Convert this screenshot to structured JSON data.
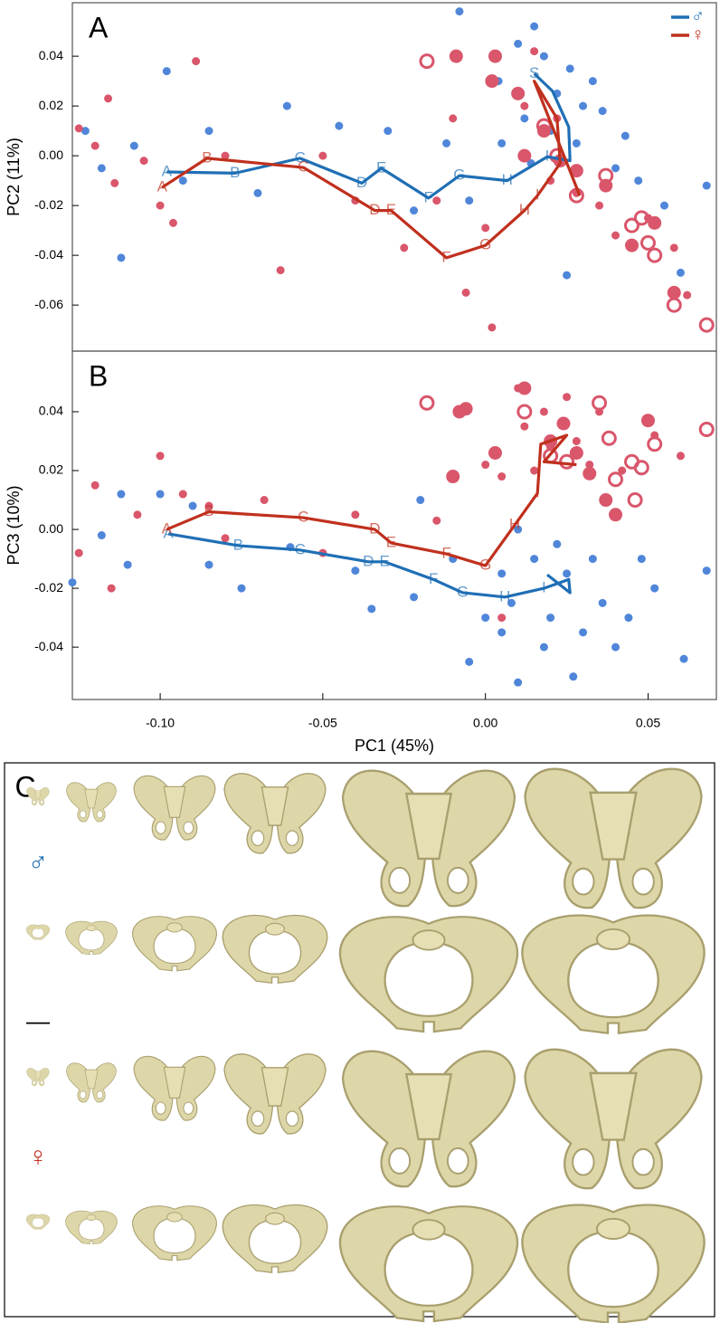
{
  "chart_data": [
    {
      "type": "scatter",
      "panel": "A",
      "ylabel": "PC2 (11%)",
      "xlim": [
        -0.127,
        0.071
      ],
      "ylim": [
        -0.0785,
        0.0615
      ],
      "yticks": [
        0.04,
        0.02,
        {
          "value": 0,
          "label": "0.00"
        },
        -0.02,
        -0.04,
        -0.06
      ],
      "legend": "upper right",
      "series": [
        {
          "color": "#4f86d9",
          "marker": "dot",
          "size": 4.5,
          "x": [
            -0.123,
            -0.118,
            -0.112,
            -0.108,
            -0.098,
            -0.093,
            -0.085,
            -0.07,
            -0.061,
            -0.045,
            -0.03,
            -0.022,
            -0.012,
            -0.008,
            -0.005,
            0.004,
            0.01,
            0.012,
            0.015,
            0.018,
            0.02,
            0.022,
            0.026,
            0.028,
            0.03,
            0.033,
            0.036,
            0.04,
            0.043,
            0.047,
            0.055,
            0.06,
            0.068,
            0.025,
            0.005,
            0.014
          ],
          "values": [
            0.01,
            -0.005,
            -0.041,
            0.004,
            0.034,
            -0.01,
            0.01,
            -0.015,
            0.02,
            0.012,
            0.01,
            -0.022,
            0.005,
            0.058,
            -0.018,
            0.03,
            0.045,
            0.015,
            0.052,
            0.04,
            0.01,
            0.025,
            0.035,
            0.005,
            0.02,
            0.03,
            0.018,
            -0.005,
            0.008,
            -0.01,
            -0.02,
            -0.047,
            -0.012,
            -0.048,
            0.005,
            -0.003
          ]
        },
        {
          "color": "#d9566b",
          "marker": "dot",
          "size": 4.5,
          "x": [
            -0.125,
            -0.12,
            -0.116,
            -0.114,
            -0.105,
            -0.1,
            -0.096,
            -0.089,
            -0.08,
            -0.063,
            -0.05,
            -0.04,
            -0.025,
            -0.015,
            -0.01,
            -0.006,
            0,
            0.002,
            0.012,
            0.015,
            0.02,
            0.022,
            0.028,
            0.035,
            0.04,
            0.045,
            0.05,
            0.058,
            0.062
          ],
          "values": [
            0.011,
            0.004,
            0.023,
            -0.011,
            -0.002,
            -0.02,
            -0.027,
            0.038,
            0,
            -0.046,
            0,
            -0.018,
            -0.037,
            -0.018,
            0.015,
            -0.055,
            -0.029,
            -0.069,
            0.02,
            0.042,
            -0.01,
            0.015,
            -0.015,
            -0.02,
            -0.032,
            -0.035,
            -0.025,
            -0.037,
            -0.056
          ]
        },
        {
          "color": "#d9566b",
          "marker": "dot",
          "size": 7.5,
          "x": [
            -0.009,
            0.002,
            0.003,
            0.01,
            0.012,
            0.018,
            0.023,
            0.028,
            0.037,
            0.045,
            0.052,
            0.058
          ],
          "values": [
            0.04,
            0.03,
            0.04,
            0.025,
            0,
            0.01,
            -0.002,
            -0.006,
            -0.012,
            -0.036,
            -0.027,
            -0.055
          ]
        },
        {
          "color": "#d9566b",
          "marker": "open",
          "size": 7,
          "x": [
            -0.018,
            0.018,
            0.022,
            0.028,
            0.037,
            0.045,
            0.048,
            0.05,
            0.052,
            0.058,
            0.068
          ],
          "values": [
            0.038,
            0.012,
            0,
            -0.016,
            -0.008,
            -0.028,
            -0.025,
            -0.035,
            -0.04,
            -0.06,
            -0.068
          ]
        },
        {
          "name": "♂",
          "color": "#1f6fb5",
          "marker": "line",
          "x": [
            -0.098,
            -0.077,
            -0.057,
            -0.038,
            -0.032,
            -0.0175,
            -0.008,
            0.0067,
            0.019,
            0.026,
            0.0256,
            0.0206,
            0.015
          ],
          "values": [
            -0.0065,
            -0.007,
            -0.001,
            -0.011,
            -0.005,
            -0.017,
            -0.008,
            -0.01,
            -0.0004,
            -0.002,
            0.0116,
            0.026,
            0.033
          ],
          "labels": [
            "A",
            "B",
            "C",
            "D",
            "E",
            "F",
            "G",
            "H",
            "I",
            null,
            null,
            null,
            "S"
          ]
        },
        {
          "name": "♀",
          "color": "#c0301e",
          "marker": "line",
          "x": [
            -0.0994,
            -0.0856,
            -0.056,
            -0.034,
            -0.029,
            -0.012,
            0,
            0.012,
            0.016,
            0.023,
            0.022,
            0.015,
            0.029
          ],
          "values": [
            -0.0127,
            -0.001,
            -0.0047,
            -0.022,
            -0.022,
            -0.041,
            -0.036,
            -0.022,
            -0.016,
            -0.003,
            0.015,
            0.03,
            -0.016
          ],
          "labels": [
            "A",
            "B",
            "C",
            "D",
            "E",
            "F",
            "G",
            "H",
            "I",
            null,
            null,
            null,
            null
          ]
        }
      ]
    },
    {
      "type": "scatter",
      "panel": "B",
      "ylabel": "PC3 (10%)",
      "xlabel": "PC1 (45%)",
      "xlim": [
        -0.127,
        0.071
      ],
      "ylim": [
        -0.0578,
        0.0606
      ],
      "xticks": [
        {
          "value": -0.1,
          "label": "-0.10"
        },
        -0.05,
        {
          "value": 0,
          "label": "0.00"
        },
        0.05
      ],
      "yticks": [
        0.04,
        0.02,
        {
          "value": 0,
          "label": "0.00"
        },
        -0.02,
        -0.04
      ],
      "series": [
        {
          "color": "#4f86d9",
          "marker": "dot",
          "size": 4.5,
          "x": [
            -0.127,
            -0.118,
            -0.112,
            -0.11,
            -0.1,
            -0.09,
            -0.085,
            -0.075,
            -0.06,
            -0.04,
            -0.035,
            -0.022,
            -0.02,
            -0.01,
            -0.005,
            0,
            0.005,
            0.008,
            0.01,
            0.015,
            0.018,
            0.02,
            0.025,
            0.027,
            0.03,
            0.033,
            0.036,
            0.04,
            0.044,
            0.048,
            0.052,
            0.061,
            0.068,
            0.01,
            0.005,
            0.022
          ],
          "values": [
            -0.018,
            -0.002,
            0.012,
            -0.012,
            0.012,
            0.008,
            -0.012,
            -0.02,
            -0.006,
            -0.014,
            -0.027,
            -0.023,
            0.01,
            -0.01,
            -0.045,
            -0.03,
            -0.035,
            -0.025,
            -0.052,
            -0.01,
            -0.04,
            -0.03,
            -0.015,
            -0.05,
            -0.035,
            -0.01,
            -0.025,
            -0.04,
            -0.03,
            -0.01,
            -0.02,
            -0.044,
            -0.014,
            0,
            -0.015,
            -0.005
          ]
        },
        {
          "color": "#d9566b",
          "marker": "dot",
          "size": 4.5,
          "x": [
            -0.125,
            -0.12,
            -0.115,
            -0.107,
            -0.1,
            -0.093,
            -0.085,
            -0.08,
            -0.068,
            -0.05,
            -0.04,
            -0.015,
            0,
            0.005,
            0.01,
            0.012,
            0.015,
            0.018,
            0.02,
            0.025,
            0.028,
            0.032,
            0.035,
            0.042,
            0.052,
            0.06,
            0.005
          ],
          "values": [
            -0.008,
            0.015,
            -0.02,
            0.005,
            0.025,
            0.012,
            0.008,
            -0.003,
            0.01,
            -0.008,
            0.005,
            0.003,
            0.022,
            0.018,
            0.048,
            0.035,
            0.02,
            0.04,
            0.028,
            0.045,
            0.03,
            0.022,
            0.04,
            0.02,
            0.032,
            0.025,
            -0.03
          ]
        },
        {
          "color": "#d9566b",
          "marker": "dot",
          "size": 7.5,
          "x": [
            -0.008,
            -0.006,
            0.003,
            -0.01,
            0.012,
            0.02,
            0.024,
            0.028,
            0.032,
            0.037,
            0.04,
            0.05
          ],
          "values": [
            0.04,
            0.041,
            0.026,
            0.018,
            0.048,
            0.03,
            0.036,
            0.026,
            0.019,
            0.01,
            0.005,
            0.037
          ]
        },
        {
          "color": "#d9566b",
          "marker": "open",
          "size": 7,
          "x": [
            -0.018,
            0.012,
            0.02,
            0.025,
            0.035,
            0.038,
            0.04,
            0.045,
            0.048,
            0.046,
            0.052,
            0.068
          ],
          "values": [
            0.043,
            0.04,
            0.025,
            0.023,
            0.043,
            0.031,
            0.017,
            0.023,
            0.021,
            0.01,
            0.029,
            0.034
          ]
        },
        {
          "name": "♂",
          "color": "#1f6fb5",
          "marker": "line",
          "x": [
            -0.0975,
            -0.076,
            -0.057,
            -0.036,
            -0.031,
            -0.016,
            -0.007,
            0.006,
            0.018,
            0.0256,
            0.026,
            0.019
          ],
          "values": [
            -0.0015,
            -0.0055,
            -0.007,
            -0.011,
            -0.011,
            -0.017,
            -0.0215,
            -0.023,
            -0.02,
            -0.017,
            -0.0215,
            -0.0154
          ],
          "labels": [
            "A",
            "B",
            "C",
            "D",
            "E",
            "F",
            "G",
            "H",
            "I",
            null,
            null,
            null
          ]
        },
        {
          "name": "♀",
          "color": "#c0301e",
          "marker": "line",
          "x": [
            -0.098,
            -0.085,
            -0.056,
            -0.034,
            -0.029,
            -0.012,
            0,
            0.009,
            0.016,
            0.017,
            0.025,
            0.018,
            0.028
          ],
          "values": [
            0,
            0.006,
            0.004,
            0,
            -0.0046,
            -0.0083,
            -0.0123,
            0.0015,
            0.0123,
            0.029,
            0.032,
            0.023,
            0.022
          ],
          "labels": [
            "A",
            "B",
            "C",
            "D",
            "E",
            "F",
            "G",
            "H",
            "I",
            null,
            null,
            null,
            null
          ]
        }
      ]
    }
  ],
  "panel_c": {
    "label": "C",
    "male_symbol": "♂",
    "divider": "—",
    "female_symbol": "♀"
  }
}
